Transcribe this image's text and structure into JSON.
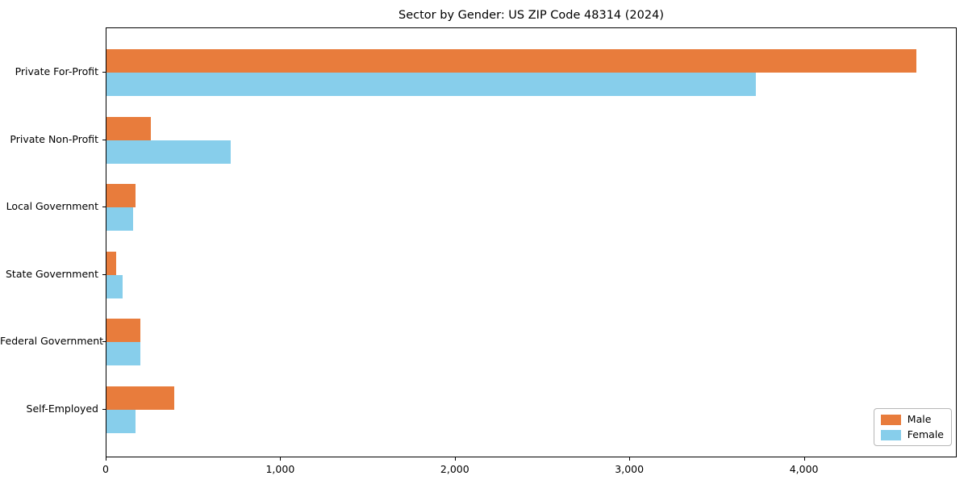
{
  "chart_data": {
    "type": "bar",
    "orientation": "horizontal",
    "title": "Sector by Gender: US ZIP Code 48314 (2024)",
    "xlabel": "",
    "ylabel": "",
    "categories": [
      "Private For-Profit",
      "Private Non-Profit",
      "Local Government",
      "State Government",
      "Federal Government",
      "Self-Employed"
    ],
    "series": [
      {
        "name": "Male",
        "color": "#E87C3C",
        "values": [
          4640,
          255,
          165,
          55,
          195,
          390
        ]
      },
      {
        "name": "Female",
        "color": "#87CEEB",
        "values": [
          3720,
          710,
          150,
          90,
          195,
          165
        ]
      }
    ],
    "xlim": [
      0,
      4875
    ],
    "xticks": [
      0,
      1000,
      2000,
      3000,
      4000
    ],
    "xtick_labels": [
      "0",
      "1,000",
      "2,000",
      "3,000",
      "4,000"
    ],
    "grid": false,
    "legend_position": "lower right"
  }
}
